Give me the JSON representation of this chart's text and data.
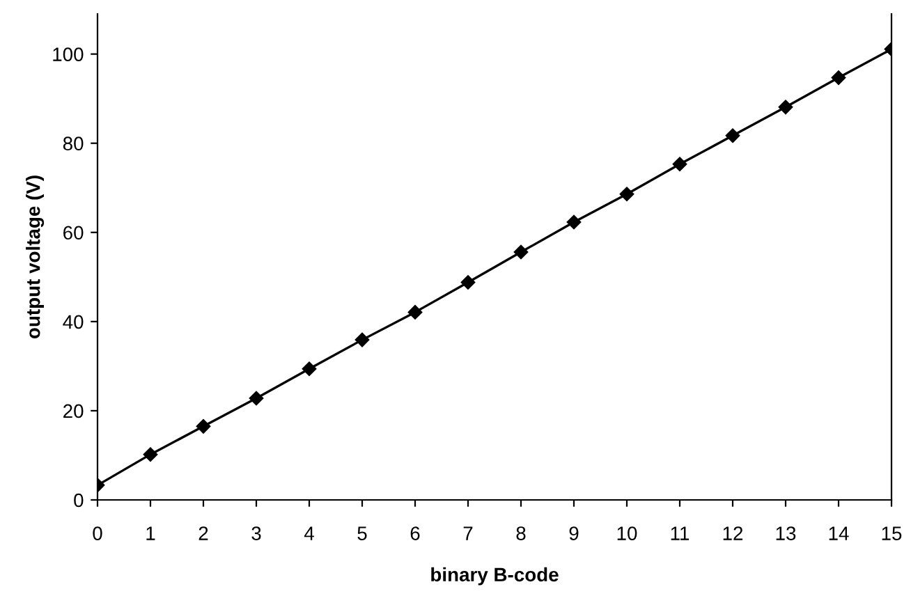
{
  "chart_data": {
    "type": "line",
    "xlabel": "binary B-code",
    "ylabel": "output voltage (V)",
    "x": [
      0,
      1,
      2,
      3,
      4,
      5,
      6,
      7,
      8,
      9,
      10,
      11,
      12,
      13,
      14,
      15
    ],
    "series": [
      {
        "color": "#000000",
        "values": [
          3.3,
          10.2,
          16.5,
          22.8,
          29.4,
          35.9,
          42.1,
          48.8,
          55.6,
          62.3,
          68.6,
          75.3,
          81.7,
          88.1,
          94.7,
          101.1
        ]
      }
    ],
    "xlim": [
      0,
      15
    ],
    "ylim": [
      0,
      109
    ],
    "xticks": [
      0,
      1,
      2,
      3,
      4,
      5,
      6,
      7,
      8,
      9,
      10,
      11,
      12,
      13,
      14,
      15
    ],
    "yticks": [
      0,
      20,
      40,
      60,
      80,
      100
    ],
    "grid": false,
    "marker": "diamond",
    "line_style": "solid"
  }
}
